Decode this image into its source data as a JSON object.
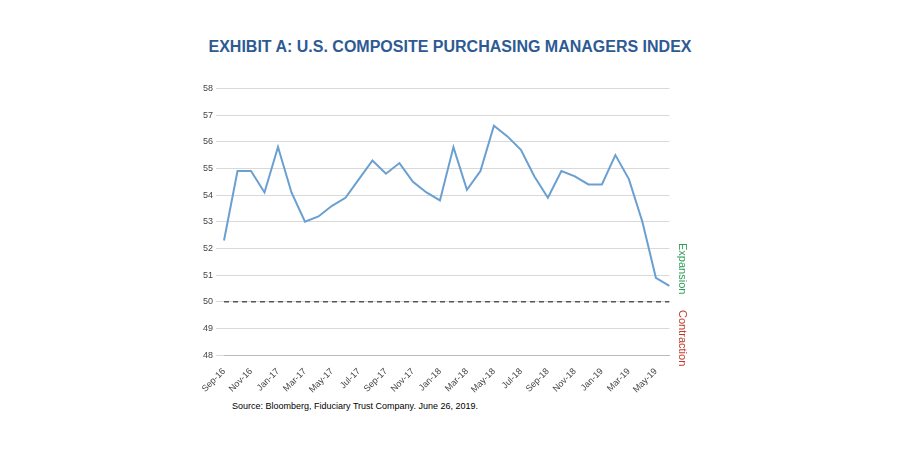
{
  "chart_data": {
    "type": "line",
    "title": "EXHIBIT A: U.S. COMPOSITE PURCHASING MANAGERS INDEX",
    "source": "Source: Bloomberg, Fiduciary Trust Company. June 26, 2019.",
    "annotations": [
      {
        "text": "Expansion",
        "color": "#2f9e5a"
      },
      {
        "text": "Contraction",
        "color": "#c0392b"
      }
    ],
    "threshold": 50,
    "categories": [
      "Sep-16",
      null,
      "Nov-16",
      null,
      "Jan-17",
      null,
      "Mar-17",
      null,
      "May-17",
      null,
      "Jul-17",
      null,
      "Sep-17",
      null,
      "Nov-17",
      null,
      "Jan-18",
      null,
      "Mar-18",
      null,
      "May-18",
      null,
      "Jul-18",
      null,
      "Sep-18",
      null,
      "Nov-18",
      null,
      "Jan-19",
      null,
      "Mar-19",
      null,
      "May-19",
      null
    ],
    "values": [
      52.3,
      54.9,
      54.9,
      54.1,
      55.8,
      54.1,
      53.0,
      53.2,
      53.6,
      53.9,
      54.6,
      55.3,
      54.8,
      55.2,
      54.5,
      54.1,
      53.8,
      55.8,
      54.2,
      54.9,
      56.6,
      56.2,
      55.7,
      54.7,
      53.9,
      54.9,
      54.7,
      54.4,
      54.4,
      55.5,
      54.6,
      53.0,
      50.9,
      50.6
    ],
    "color": "#6a9fd1",
    "ylim": [
      48,
      58
    ],
    "yticks": [
      48,
      49,
      50,
      51,
      52,
      53,
      54,
      55,
      56,
      57,
      58
    ],
    "grid": true
  }
}
